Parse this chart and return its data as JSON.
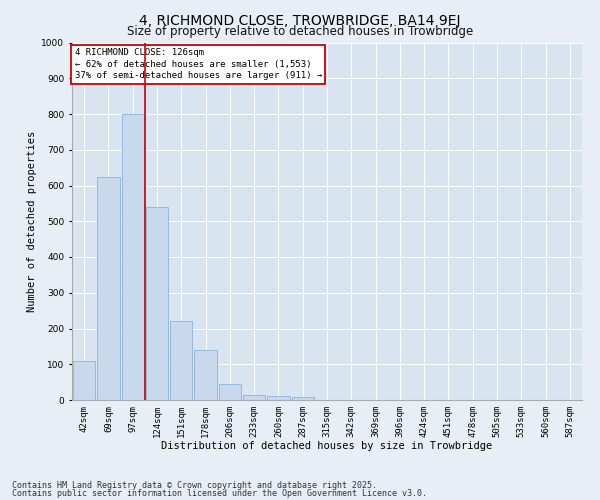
{
  "title": "4, RICHMOND CLOSE, TROWBRIDGE, BA14 9EJ",
  "subtitle": "Size of property relative to detached houses in Trowbridge",
  "xlabel": "Distribution of detached houses by size in Trowbridge",
  "ylabel": "Number of detached properties",
  "categories": [
    "42sqm",
    "69sqm",
    "97sqm",
    "124sqm",
    "151sqm",
    "178sqm",
    "206sqm",
    "233sqm",
    "260sqm",
    "287sqm",
    "315sqm",
    "342sqm",
    "369sqm",
    "396sqm",
    "424sqm",
    "451sqm",
    "478sqm",
    "505sqm",
    "533sqm",
    "560sqm",
    "587sqm"
  ],
  "values": [
    110,
    625,
    800,
    540,
    220,
    140,
    45,
    15,
    10,
    8,
    0,
    0,
    0,
    0,
    0,
    0,
    0,
    0,
    0,
    0,
    0
  ],
  "bar_color": "#c8d9ee",
  "bar_edge_color": "#8ab4d8",
  "vline_color": "#cc0000",
  "vline_pos": 2.5,
  "ylim": [
    0,
    1000
  ],
  "yticks": [
    0,
    100,
    200,
    300,
    400,
    500,
    600,
    700,
    800,
    900,
    1000
  ],
  "annotation_text": "4 RICHMOND CLOSE: 126sqm\n← 62% of detached houses are smaller (1,553)\n37% of semi-detached houses are larger (911) →",
  "annotation_box_color": "#cc0000",
  "footer_line1": "Contains HM Land Registry data © Crown copyright and database right 2025.",
  "footer_line2": "Contains public sector information licensed under the Open Government Licence v3.0.",
  "bg_color": "#e8eef5",
  "plot_bg_color": "#d8e4f0",
  "grid_color": "#ffffff",
  "title_fontsize": 10,
  "subtitle_fontsize": 8.5,
  "xlabel_fontsize": 7.5,
  "ylabel_fontsize": 7.5,
  "tick_fontsize": 6.5,
  "annotation_fontsize": 6.5,
  "footer_fontsize": 6.0
}
